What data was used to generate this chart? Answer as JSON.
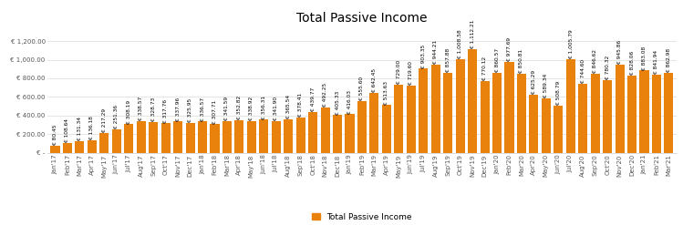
{
  "title": "Total Passive Income",
  "legend_label": "Total Passive Income",
  "bar_color": "#E8820C",
  "background_color": "#FFFFFF",
  "categories": [
    "Jan'17",
    "Feb'17",
    "Mar'17",
    "Apr'17",
    "May'17",
    "Jun'17",
    "Jul'17",
    "Aug'17",
    "Sep'17",
    "Oct'17",
    "Nov'17",
    "Dec'17",
    "Jan'18",
    "Feb'18",
    "Mar'18",
    "Apr'18",
    "May'18",
    "Jun'18",
    "Jul'18",
    "Aug'18",
    "Sep'18",
    "Oct'18",
    "Nov'18",
    "Dec'18",
    "Jan'19",
    "Feb'19",
    "Mar'19",
    "Apr'19",
    "May'19",
    "Jun'19",
    "Jul'19",
    "Aug'19",
    "Sep'19",
    "Oct'19",
    "Nov'19",
    "Dec'19",
    "Jan'20",
    "Feb'20",
    "Mar'20",
    "Apr'20",
    "May'20",
    "Jun'20",
    "Jul'20",
    "Aug'20",
    "Sep'20",
    "Oct'20",
    "Nov'20",
    "Dec'20",
    "Jan'21",
    "Feb'21",
    "Mar'21"
  ],
  "values": [
    80.45,
    108.64,
    131.34,
    136.18,
    217.29,
    251.36,
    308.19,
    338.57,
    328.73,
    317.76,
    337.96,
    325.95,
    336.57,
    307.71,
    341.59,
    352.82,
    338.92,
    356.31,
    341.9,
    365.54,
    378.41,
    439.77,
    492.25,
    405.33,
    416.03,
    555.6,
    642.45,
    513.63,
    729.0,
    719.6,
    903.35,
    944.21,
    857.88,
    1008.58,
    1112.21,
    770.12,
    860.57,
    977.69,
    850.81,
    625.29,
    589.34,
    508.79,
    1005.79,
    744.6,
    846.62,
    780.32,
    945.86,
    828.06,
    883.08,
    841.94,
    862.98
  ],
  "ylim": [
    0,
    1350
  ],
  "yticks": [
    0,
    200,
    400,
    600,
    800,
    1000,
    1200
  ],
  "ytick_labels": [
    "€ -",
    "€ 200.00",
    "€ 400.00",
    "€ 600.00",
    "€ 800.00",
    "€ 1,000.00",
    "€ 1,200.00"
  ],
  "title_fontsize": 10,
  "label_fontsize": 4.2,
  "tick_fontsize": 5.0,
  "legend_fontsize": 6.5
}
